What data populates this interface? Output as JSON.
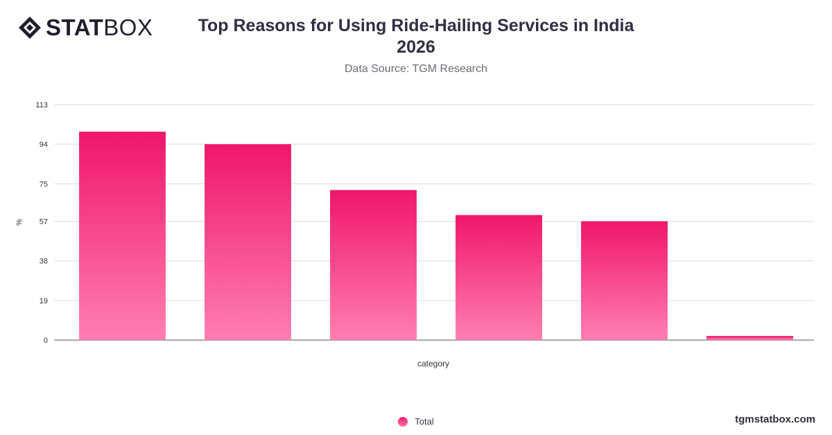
{
  "brand": {
    "logo_bold": "STAT",
    "logo_light": "BOX",
    "icon": "statbox-diamond-icon",
    "footer_url": "tgmstatbox.com"
  },
  "header": {
    "title_line1": "Top Reasons for Using Ride-Hailing Services in India",
    "title_line2": "2026",
    "subtitle": "Data Source: TGM Research"
  },
  "colors": {
    "bar_top": "#f0166a",
    "bar_bottom": "#ff7fb0",
    "grid": "#dddddd",
    "axis_text": "#333333"
  },
  "chart_data": {
    "type": "bar",
    "title": "Top Reasons for Using Ride-Hailing Services in India 2026",
    "subtitle": "Data Source: TGM Research",
    "xlabel": "category",
    "ylabel": "%",
    "categories": [
      "",
      "",
      "",
      "",
      "",
      ""
    ],
    "series": [
      {
        "name": "Total",
        "values": [
          100,
          94,
          72,
          60,
          57,
          2
        ]
      }
    ],
    "yticks": [
      0,
      19,
      38,
      57,
      75,
      94,
      113
    ],
    "ylim": [
      0,
      113
    ],
    "grid": true,
    "legend_position": "bottom"
  }
}
